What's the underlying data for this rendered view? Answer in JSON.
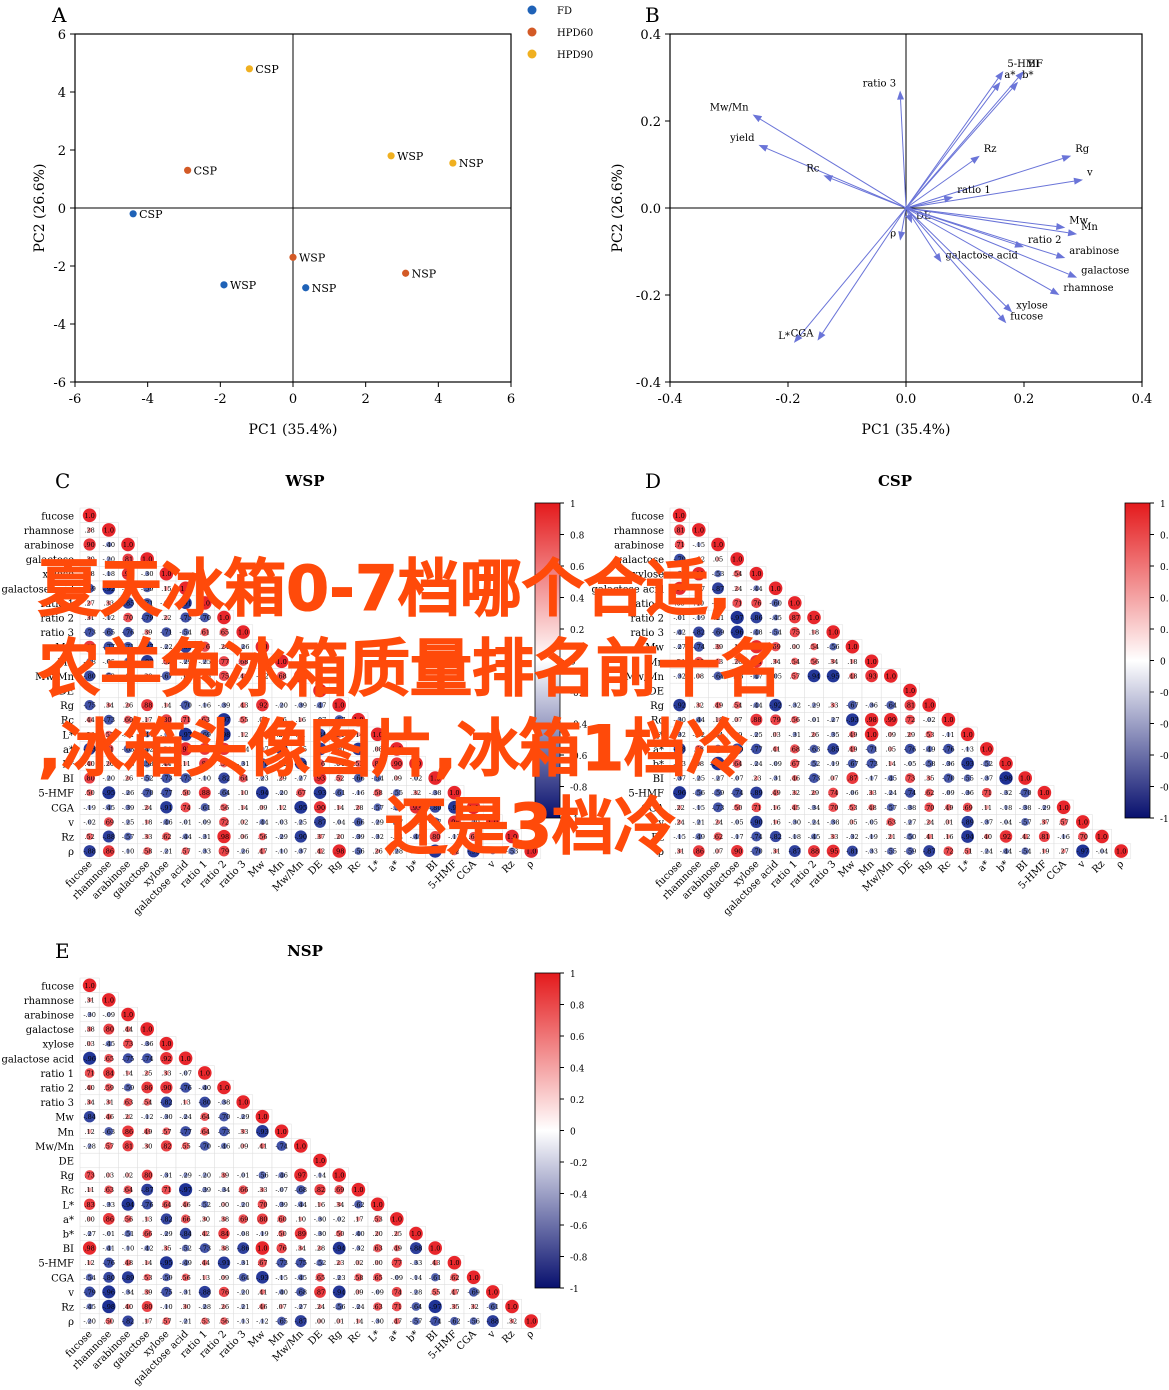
{
  "panels": {
    "a": "A",
    "b": "B",
    "c": "C",
    "d": "D",
    "e": "E"
  },
  "overlay": {
    "line1": "夏天冰箱0-7档哪个合适,",
    "line2": "冰箱质量排名前十名",
    "line3": ",冰箱头像图片,冰箱1档冷",
    "line4": "还是3档冷",
    "line1_prefix": "夏天冰箱0-7档哪个合适,",
    "line2_prefix": "农羊兔"
  },
  "colors": {
    "FD": "#1f62b7",
    "HPD60": "#d35a26",
    "HPD90": "#f0b020",
    "arrow": "#6a74d8",
    "pos": "#e8262b",
    "neg": "#1b2f94"
  },
  "corr_labels": [
    "fucose",
    "rhamnose",
    "arabinose",
    "galactose",
    "xylose",
    "galactose acid",
    "ratio 1",
    "ratio 2",
    "ratio 3",
    "Mw",
    "Mn",
    "Mw/Mn",
    "DE",
    "Rg",
    "Rc",
    "L*",
    "a*",
    "b*",
    "BI",
    "5-HMF",
    "CGA",
    "v",
    "Rz",
    "ρ"
  ],
  "chart_data": [
    {
      "type": "scatter",
      "panel": "A",
      "xlabel": "PC1 (35.4%)",
      "ylabel": "PC2 (26.6%)",
      "xlim": [
        -6,
        6
      ],
      "ylim": [
        -6,
        6
      ],
      "xticks": [
        "-6",
        "-4",
        "-2",
        "0",
        "2",
        "4",
        "6"
      ],
      "yticks": [
        "-6",
        "-4",
        "-2",
        "0",
        "2",
        "4",
        "6"
      ],
      "legend": [
        "FD",
        "HPD60",
        "HPD90"
      ],
      "legend_position": "top-right",
      "points": [
        {
          "group": "HPD90",
          "label": "CSP",
          "x": -1.2,
          "y": 4.8
        },
        {
          "group": "HPD60",
          "label": "CSP",
          "x": -2.9,
          "y": 1.3
        },
        {
          "group": "FD",
          "label": "CSP",
          "x": -4.4,
          "y": -0.2
        },
        {
          "group": "HPD90",
          "label": "WSP",
          "x": 2.7,
          "y": 1.8
        },
        {
          "group": "HPD90",
          "label": "NSP",
          "x": 4.4,
          "y": 1.55
        },
        {
          "group": "HPD60",
          "label": "WSP",
          "x": 0,
          "y": -1.7
        },
        {
          "group": "FD",
          "label": "WSP",
          "x": -1.9,
          "y": -2.65
        },
        {
          "group": "FD",
          "label": "NSP",
          "x": 0.35,
          "y": -2.75
        },
        {
          "group": "HPD60",
          "label": "NSP",
          "x": 3.1,
          "y": -2.25
        }
      ]
    },
    {
      "type": "scatter",
      "subtype": "loadings",
      "panel": "B",
      "xlabel": "PC1 (35.4%)",
      "ylabel": "PC2 (26.6%)",
      "xlim": [
        -0.4,
        0.4
      ],
      "ylim": [
        -0.4,
        0.4
      ],
      "xticks": [
        "-0.4",
        "-0.2",
        "0.0",
        "0.2",
        "0.4"
      ],
      "yticks": [
        "-0.4",
        "-0.2",
        "0.0",
        "0.2",
        "0.4"
      ],
      "vectors": [
        {
          "label": "ratio 3",
          "x": -0.01,
          "y": 0.27
        },
        {
          "label": "Mw/Mn",
          "x": -0.26,
          "y": 0.215
        },
        {
          "label": "yield",
          "x": -0.25,
          "y": 0.145
        },
        {
          "label": "Rc",
          "x": -0.14,
          "y": 0.075
        },
        {
          "label": "5-HMF",
          "x": 0.165,
          "y": 0.315
        },
        {
          "label": "BI",
          "x": 0.2,
          "y": 0.315
        },
        {
          "label": "a*",
          "x": 0.16,
          "y": 0.29
        },
        {
          "label": "b*",
          "x": 0.19,
          "y": 0.29
        },
        {
          "label": "Rz",
          "x": 0.125,
          "y": 0.12
        },
        {
          "label": "Rg",
          "x": 0.28,
          "y": 0.12
        },
        {
          "label": "v",
          "x": 0.3,
          "y": 0.065
        },
        {
          "label": "ratio 1",
          "x": 0.08,
          "y": 0.025
        },
        {
          "label": "DE",
          "x": 0.01,
          "y": -0.035
        },
        {
          "label": "ρ",
          "x": -0.01,
          "y": -0.075
        },
        {
          "label": "galactose acid",
          "x": 0.06,
          "y": -0.125
        },
        {
          "label": "Mw",
          "x": 0.27,
          "y": -0.045
        },
        {
          "label": "Mn",
          "x": 0.29,
          "y": -0.06
        },
        {
          "label": "ratio 2",
          "x": 0.2,
          "y": -0.09
        },
        {
          "label": "arabinose",
          "x": 0.27,
          "y": -0.115
        },
        {
          "label": "galactose",
          "x": 0.29,
          "y": -0.16
        },
        {
          "label": "rhamnose",
          "x": 0.26,
          "y": -0.2
        },
        {
          "label": "xylose",
          "x": 0.18,
          "y": -0.24
        },
        {
          "label": "fucose",
          "x": 0.17,
          "y": -0.265
        },
        {
          "label": "L*",
          "x": -0.19,
          "y": -0.31
        },
        {
          "label": "CGA",
          "x": -0.15,
          "y": -0.305
        }
      ]
    },
    {
      "type": "heatmap",
      "panel": "C",
      "title": "WSP",
      "colorbar_ticks": [
        "1",
        "0.8",
        "0.6",
        "0.4",
        "0.2",
        "0",
        "-0.2",
        "-0.4",
        "-0.6",
        "-0.8",
        "-1"
      ]
    },
    {
      "type": "heatmap",
      "panel": "D",
      "title": "CSP",
      "colorbar_ticks": [
        "1",
        "0.8",
        "0.6",
        "0.4",
        "0.2",
        "0",
        "-0.2",
        "-0.4",
        "-0.6",
        "-0.8",
        "-1"
      ]
    },
    {
      "type": "heatmap",
      "panel": "E",
      "title": "NSP",
      "colorbar_ticks": [
        "1",
        "0.8",
        "0.6",
        "0.4",
        "0.2",
        "0",
        "-0.2",
        "-0.4",
        "-0.6",
        "-0.8",
        "-1"
      ]
    }
  ]
}
